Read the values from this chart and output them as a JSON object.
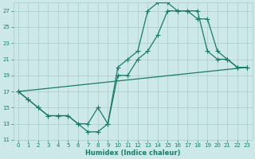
{
  "xlabel": "Humidex (Indice chaleur)",
  "bg_color": "#cce8e8",
  "grid_color": "#aacccc",
  "line_color": "#1a7a6a",
  "xlim": [
    -0.5,
    23.5
  ],
  "ylim": [
    11,
    28
  ],
  "xticks": [
    0,
    1,
    2,
    3,
    4,
    5,
    6,
    7,
    8,
    9,
    10,
    11,
    12,
    13,
    14,
    15,
    16,
    17,
    18,
    19,
    20,
    21,
    22,
    23
  ],
  "yticks": [
    11,
    13,
    15,
    17,
    19,
    21,
    23,
    25,
    27
  ],
  "line1_x": [
    0,
    1,
    2,
    3,
    4,
    5,
    6,
    7,
    8,
    9,
    10,
    11,
    12,
    13,
    14,
    15,
    16,
    17,
    18,
    19,
    20,
    21,
    22,
    23
  ],
  "line1_y": [
    17,
    16,
    15,
    14,
    14,
    14,
    13,
    13,
    15,
    13,
    20,
    21,
    22,
    27,
    28,
    28,
    27,
    27,
    27,
    22,
    21,
    21,
    20,
    20
  ],
  "line2_x": [
    0,
    1,
    2,
    3,
    4,
    5,
    6,
    7,
    8,
    9,
    10,
    11,
    12,
    13,
    14,
    15,
    16,
    17,
    18,
    19,
    20,
    21,
    22,
    23
  ],
  "line2_y": [
    17,
    16,
    15,
    14,
    14,
    14,
    13,
    12,
    12,
    13,
    19,
    19,
    21,
    22,
    24,
    27,
    27,
    27,
    26,
    26,
    22,
    21,
    20,
    20
  ],
  "line3_x": [
    0,
    23
  ],
  "line3_y": [
    17,
    20
  ],
  "marker_size": 2.5,
  "line_width": 0.9,
  "tick_fontsize": 5.0,
  "xlabel_fontsize": 6.0
}
